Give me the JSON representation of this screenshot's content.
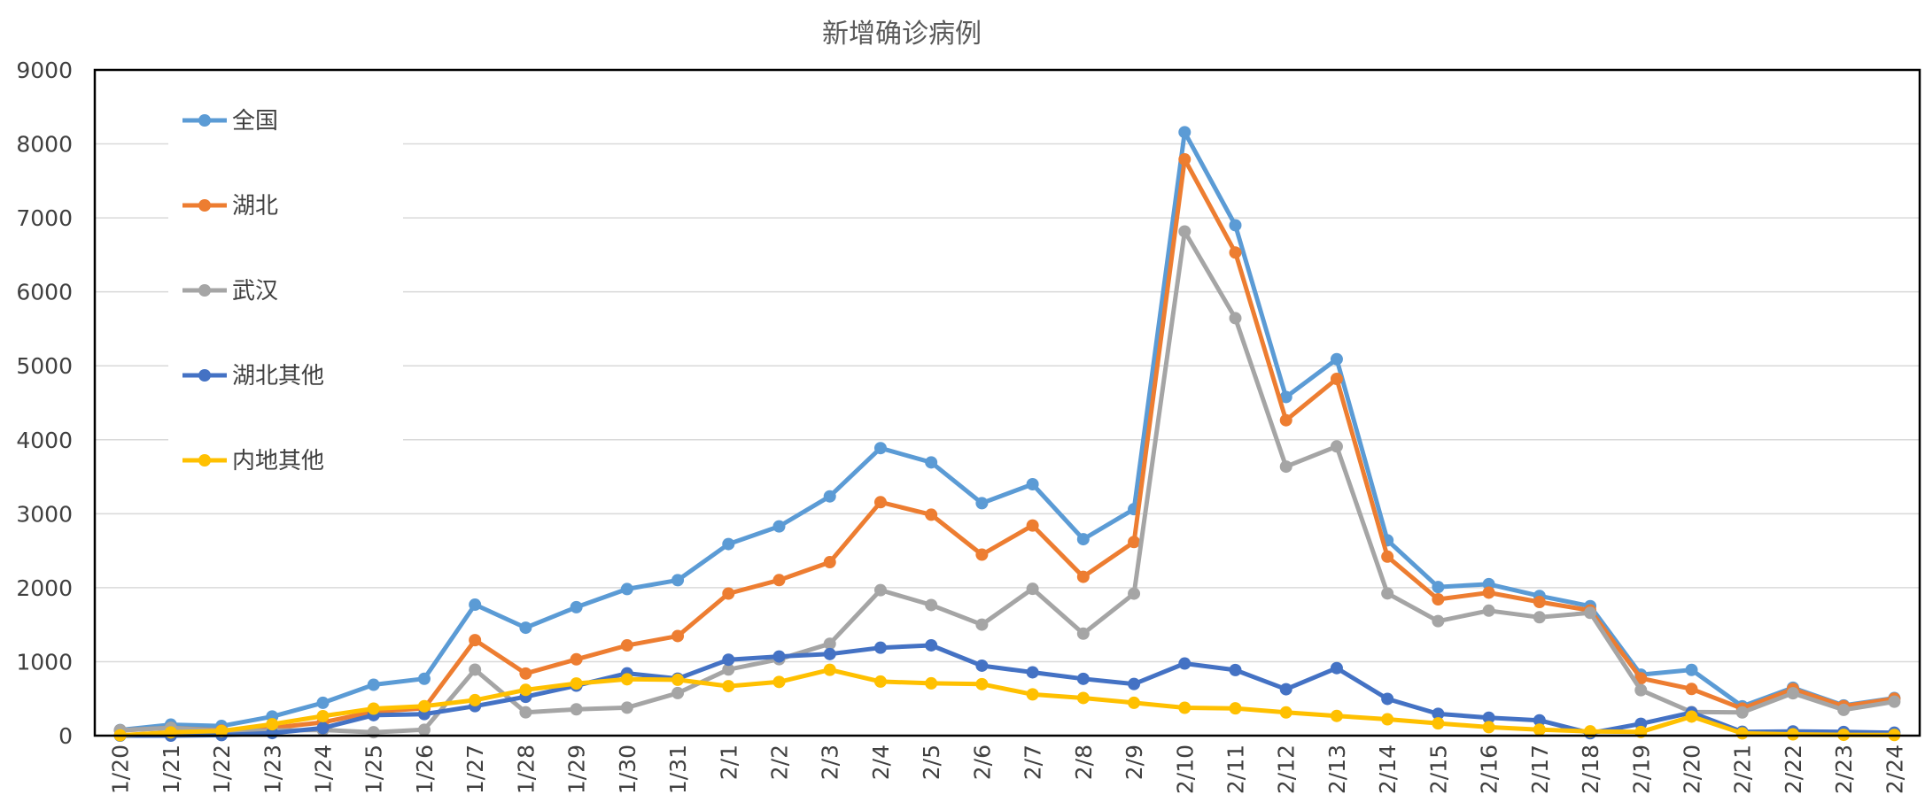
{
  "chart_data": {
    "type": "line",
    "title": "新增确诊病例",
    "xlabel": "",
    "ylabel": "",
    "ylim": [
      0,
      9000
    ],
    "yticks": [
      0,
      1000,
      2000,
      3000,
      4000,
      5000,
      6000,
      7000,
      8000,
      9000
    ],
    "grid": true,
    "legend_position": "top-left",
    "categories": [
      "1/20",
      "1/21",
      "1/22",
      "1/23",
      "1/24",
      "1/25",
      "1/26",
      "1/27",
      "1/28",
      "1/29",
      "1/30",
      "1/31",
      "2/1",
      "2/2",
      "2/3",
      "2/4",
      "2/5",
      "2/6",
      "2/7",
      "2/8",
      "2/9",
      "2/10",
      "2/11",
      "2/12",
      "2/13",
      "2/14",
      "2/15",
      "2/16",
      "2/17",
      "2/18",
      "2/19",
      "2/20",
      "2/21",
      "2/22",
      "2/23",
      "2/24"
    ],
    "series": [
      {
        "name": "全国",
        "color": "#5B9BD5",
        "values": [
          77,
          149,
          131,
          259,
          444,
          688,
          769,
          1771,
          1459,
          1737,
          1982,
          2102,
          2590,
          2829,
          3235,
          3887,
          3694,
          3143,
          3399,
          2656,
          3062,
          8158,
          6900,
          4578,
          5090,
          2641,
          2009,
          2048,
          1888,
          1751,
          825,
          889,
          397,
          648,
          409,
          508
        ]
      },
      {
        "name": "湖北",
        "color": "#ED7D31",
        "values": [
          72,
          105,
          69,
          105,
          180,
          323,
          371,
          1291,
          840,
          1032,
          1220,
          1347,
          1921,
          2103,
          2345,
          3156,
          2987,
          2447,
          2841,
          2147,
          2618,
          7791,
          6531,
          4264,
          4823,
          2420,
          1843,
          1933,
          1807,
          1693,
          775,
          631,
          366,
          630,
          398,
          499
        ]
      },
      {
        "name": "武汉",
        "color": "#A5A5A5",
        "values": [
          72,
          105,
          62,
          70,
          77,
          46,
          80,
          892,
          315,
          356,
          378,
          576,
          894,
          1033,
          1242,
          1967,
          1766,
          1501,
          1985,
          1379,
          1920,
          6816,
          5644,
          3637,
          3910,
          1923,
          1548,
          1690,
          1600,
          1660,
          615,
          319,
          314,
          573,
          348,
          459
        ]
      },
      {
        "name": "湖北其他",
        "color": "#4472C4",
        "values": [
          0,
          0,
          7,
          35,
          103,
          277,
          291,
          399,
          525,
          676,
          842,
          771,
          1027,
          1070,
          1103,
          1189,
          1221,
          946,
          856,
          768,
          698,
          975,
          887,
          627,
          913,
          497,
          295,
          243,
          207,
          33,
          160,
          312,
          52,
          57,
          50,
          40
        ]
      },
      {
        "name": "内地其他",
        "color": "#FFC000",
        "values": [
          5,
          44,
          62,
          154,
          264,
          365,
          398,
          480,
          619,
          705,
          762,
          755,
          669,
          726,
          890,
          731,
          707,
          696,
          558,
          509,
          444,
          377,
          369,
          314,
          267,
          221,
          166,
          115,
          81,
          58,
          50,
          258,
          31,
          18,
          11,
          9
        ]
      }
    ]
  }
}
